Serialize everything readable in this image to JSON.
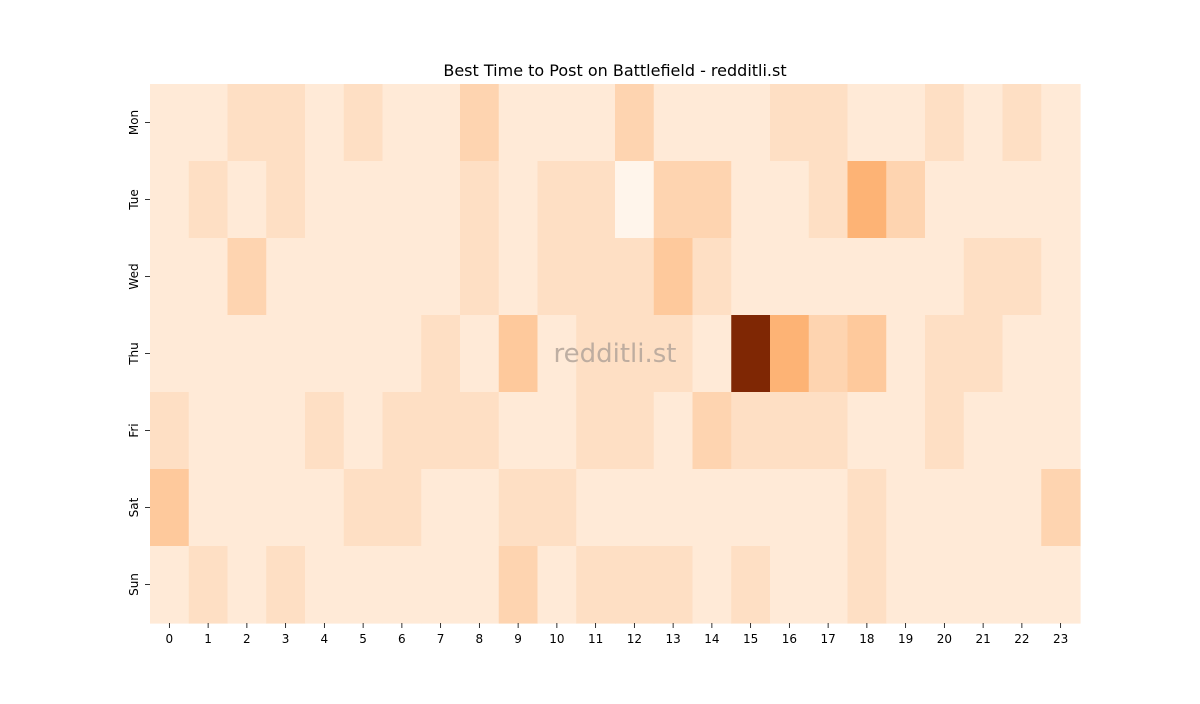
{
  "chart_data": {
    "type": "heatmap",
    "title": "Best Time to Post on Battlefield - redditli.st",
    "watermark": "redditli.st",
    "xlabel": "",
    "ylabel": "",
    "x": [
      "0",
      "1",
      "2",
      "3",
      "4",
      "5",
      "6",
      "7",
      "8",
      "9",
      "10",
      "11",
      "12",
      "13",
      "14",
      "15",
      "16",
      "17",
      "18",
      "19",
      "20",
      "21",
      "22",
      "23"
    ],
    "y": [
      "Mon",
      "Tue",
      "Wed",
      "Thu",
      "Fri",
      "Sat",
      "Sun"
    ],
    "values": [
      [
        0,
        0,
        1,
        1,
        0,
        1,
        0,
        0,
        2,
        0,
        0,
        0,
        2,
        0,
        0,
        0,
        1,
        1,
        0,
        0,
        1,
        0,
        1,
        0
      ],
      [
        0,
        1,
        0,
        1,
        0,
        0,
        0,
        0,
        1,
        0,
        1,
        1,
        -1,
        2,
        2,
        0,
        0,
        1,
        5,
        2,
        0,
        0,
        0,
        0
      ],
      [
        0,
        0,
        2,
        0,
        0,
        0,
        0,
        0,
        1,
        0,
        1,
        1,
        1,
        3,
        1,
        0,
        0,
        0,
        0,
        0,
        0,
        1,
        1,
        0
      ],
      [
        0,
        0,
        0,
        0,
        0,
        0,
        0,
        1,
        0,
        3,
        0,
        1,
        1,
        1,
        0,
        12,
        5,
        2,
        3,
        0,
        1,
        1,
        0,
        0
      ],
      [
        1,
        0,
        0,
        0,
        1,
        0,
        1,
        1,
        1,
        0,
        0,
        1,
        1,
        0,
        2,
        1,
        1,
        1,
        0,
        0,
        1,
        0,
        0,
        0
      ],
      [
        3,
        0,
        0,
        0,
        0,
        1,
        1,
        0,
        0,
        1,
        1,
        0,
        0,
        0,
        0,
        0,
        0,
        0,
        1,
        0,
        0,
        0,
        0,
        2
      ],
      [
        0,
        1,
        0,
        1,
        0,
        0,
        0,
        0,
        0,
        2,
        0,
        1,
        1,
        1,
        0,
        1,
        0,
        0,
        1,
        0,
        0,
        0,
        0,
        0
      ]
    ],
    "color_scale": {
      "low": "#fff5eb",
      "mid": "#fdae6b",
      "high": "#7f2704"
    },
    "value_range": [
      -1,
      12
    ],
    "colorbar": false,
    "grid": false
  }
}
